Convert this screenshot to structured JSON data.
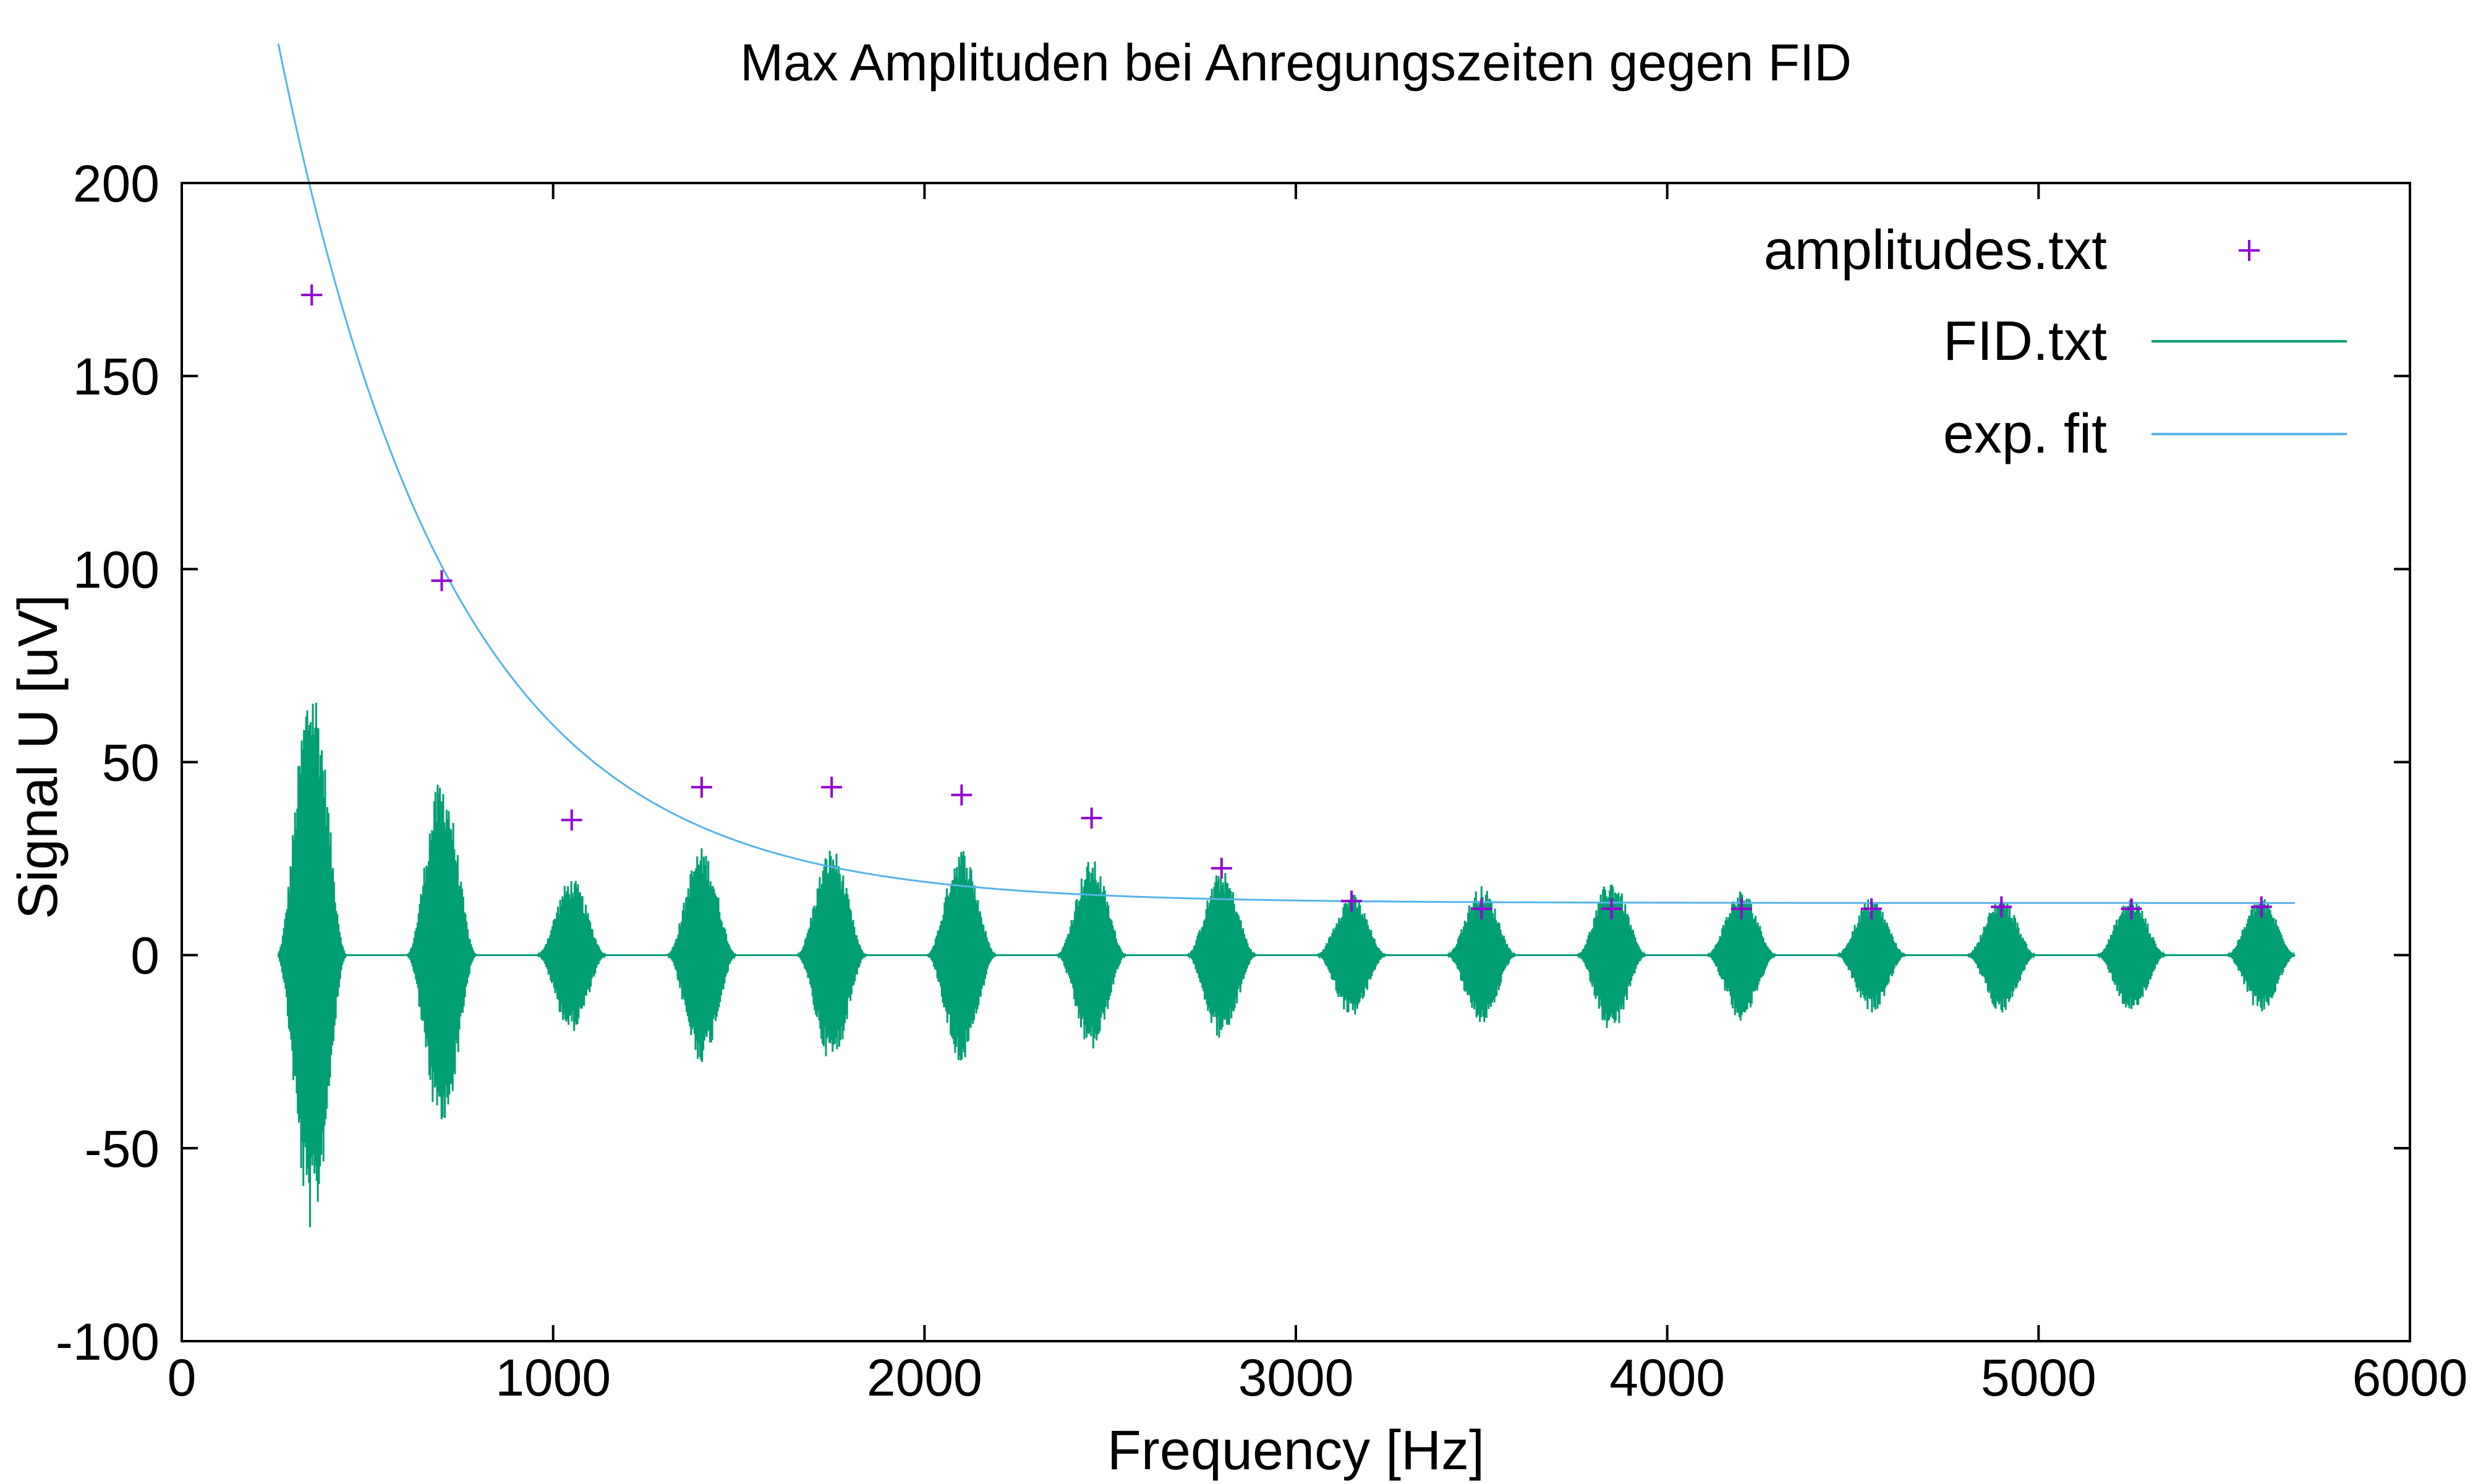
{
  "chart_data": {
    "type": "line",
    "title": "Max Amplituden bei Anregungszeiten gegen FID",
    "xlabel": "Frequency [Hz]",
    "ylabel": "Signal U [uV]",
    "xlim": [
      0,
      6000
    ],
    "ylim": [
      -100,
      200
    ],
    "xticks": [
      0,
      1000,
      2000,
      3000,
      4000,
      5000,
      6000
    ],
    "yticks": [
      -100,
      -50,
      0,
      50,
      100,
      150,
      200
    ],
    "grid": false,
    "legend_position": "top-right",
    "series": [
      {
        "name": "amplitudes.txt",
        "style": "points",
        "marker": "+",
        "color": "#9400d3",
        "points": [
          [
            350,
            171
          ],
          [
            700,
            97
          ],
          [
            1050,
            35
          ],
          [
            1400,
            43.5
          ],
          [
            1750,
            43.5
          ],
          [
            2100,
            41.5
          ],
          [
            2450,
            35.5
          ],
          [
            2800,
            22.5
          ],
          [
            3150,
            14
          ],
          [
            3500,
            12
          ],
          [
            3850,
            12
          ],
          [
            4200,
            12
          ],
          [
            4550,
            12
          ],
          [
            4900,
            12.5
          ],
          [
            5250,
            12
          ],
          [
            5600,
            12.5
          ]
        ]
      },
      {
        "name": "FID.txt",
        "style": "line",
        "color": "#009e73",
        "x_range": [
          260,
          5690
        ],
        "burst_centers": [
          350,
          700,
          1050,
          1400,
          1750,
          2100,
          2450,
          2800,
          3150,
          3500,
          3850,
          4200,
          4550,
          4900,
          5250,
          5600
        ],
        "burst_amplitudes": [
          72,
          46,
          20,
          28,
          28,
          28,
          25,
          22,
          16,
          18,
          20,
          17,
          15,
          15,
          15,
          15
        ],
        "burst_half_width_hz": 95
      },
      {
        "name": "exp. fit",
        "style": "line",
        "color": "#56b4e9",
        "model": "y = A*exp(-x/tau) + C",
        "params": {
          "A": 387,
          "tau": 470,
          "C": 13.5
        },
        "x_range": [
          260,
          5690
        ]
      }
    ]
  }
}
